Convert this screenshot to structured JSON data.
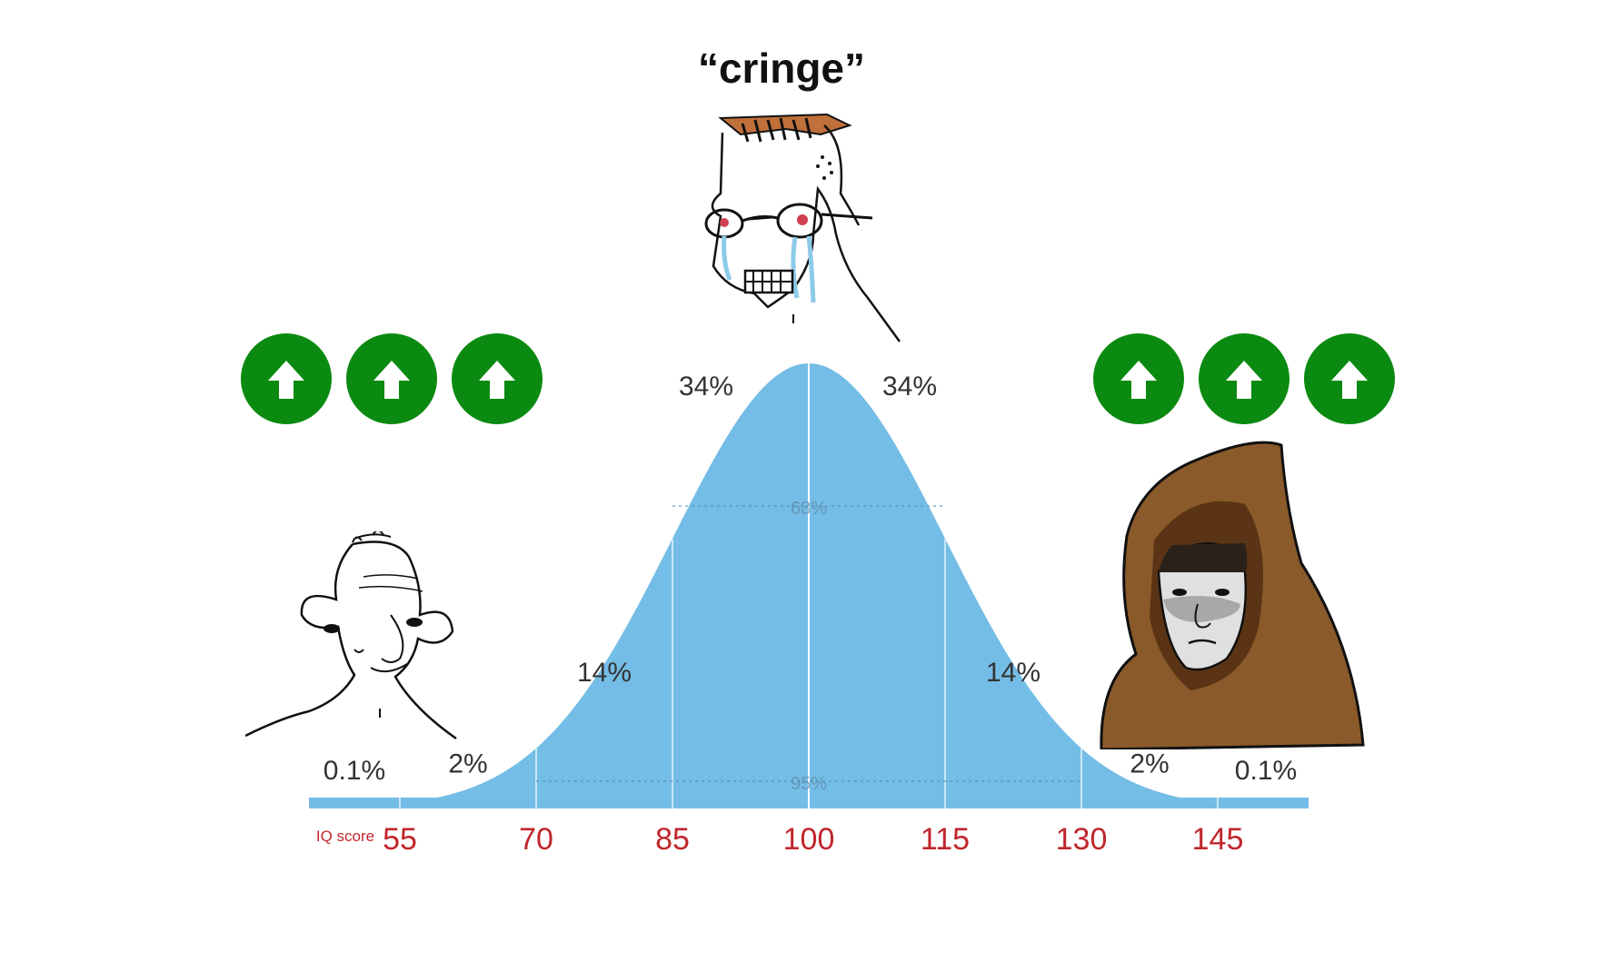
{
  "caption": "“cringe”",
  "upvote_color": "#0a8a10",
  "characters": [
    {
      "role": "left",
      "icon": "wojak-simple-face"
    },
    {
      "role": "middle",
      "icon": "crying-wojak-face"
    },
    {
      "role": "right",
      "icon": "hooded-wojak-face"
    }
  ],
  "upvotes": {
    "left_count": 3,
    "right_count": 3,
    "icon": "arrow-up-icon"
  },
  "chart_data": {
    "type": "area",
    "title": "",
    "xlabel": "IQ score",
    "ylabel": "",
    "xlim": [
      45,
      155
    ],
    "x_ticks": [
      55,
      70,
      85,
      100,
      115,
      130,
      145
    ],
    "x_tick_labels": [
      "55",
      "70",
      "85",
      "100",
      "115",
      "130",
      "145"
    ],
    "distribution": {
      "mean": 100,
      "sd": 15
    },
    "band_labels": [
      {
        "label": "0.1%",
        "x": 47.5
      },
      {
        "label": "2%",
        "x": 62.5
      },
      {
        "label": "14%",
        "x": 77.5
      },
      {
        "label": "34%",
        "x": 92.5
      },
      {
        "label": "34%",
        "x": 107.5
      },
      {
        "label": "14%",
        "x": 122.5
      },
      {
        "label": "2%",
        "x": 137.5
      },
      {
        "label": "0.1%",
        "x": 152.5
      }
    ],
    "intervals": [
      {
        "label": "68%",
        "from": 85,
        "to": 115
      },
      {
        "label": "95%",
        "from": 70,
        "to": 130
      }
    ],
    "fill_color": "#74bde6",
    "tick_color": "#c0262c"
  }
}
